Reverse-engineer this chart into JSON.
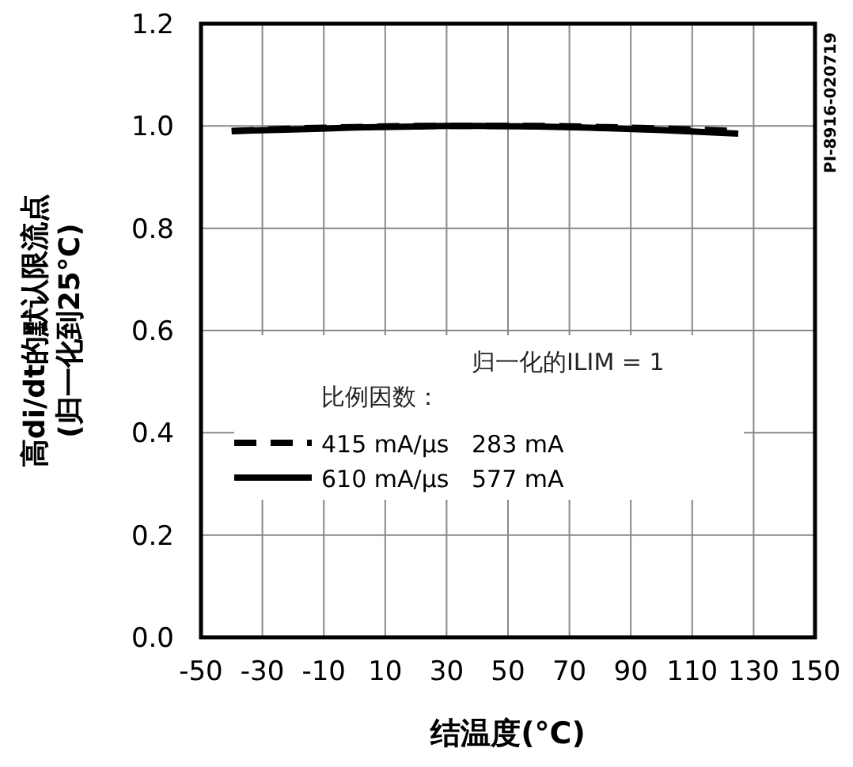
{
  "chart_data": {
    "type": "line",
    "xlabel": "结温度(°C)",
    "ylabel": "高di/dt的默认限流点\n(归一化到25°C)",
    "legend_title": "比例因数：",
    "annotations": [
      "归一化的ILIM = 1",
      "PI-8916-020719"
    ],
    "x": [
      -40,
      -20,
      0,
      20,
      30,
      40,
      60,
      80,
      100,
      125
    ],
    "series": [
      {
        "name": "415 mA/μs   283 mA",
        "color": "#000000",
        "line_style": "dashed",
        "values": [
          0.99,
          0.995,
          0.998,
          1.0,
          1.0,
          1.0,
          1.0,
          0.998,
          0.995,
          0.99
        ]
      },
      {
        "name": "610 mA/μs   577 mA",
        "color": "#000000",
        "line_style": "solid",
        "values": [
          0.99,
          0.993,
          0.997,
          0.999,
          1.0,
          1.0,
          0.999,
          0.996,
          0.992,
          0.985
        ]
      }
    ],
    "xlim": [
      -50,
      150
    ],
    "xticks": [
      -50,
      -30,
      -10,
      10,
      30,
      50,
      70,
      90,
      110,
      130,
      150
    ],
    "ylim": [
      0,
      1.2
    ],
    "yticks": [
      {
        "value": 0,
        "label": "0.0"
      },
      0.2,
      0.4,
      0.6,
      0.8,
      {
        "value": 1,
        "label": "1.0"
      },
      1.2
    ],
    "grid": true,
    "legend": "bottom left",
    "marker": "none"
  }
}
